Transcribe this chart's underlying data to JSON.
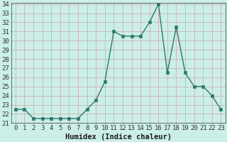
{
  "x": [
    0,
    1,
    2,
    3,
    4,
    5,
    6,
    7,
    8,
    9,
    10,
    11,
    12,
    13,
    14,
    15,
    16,
    17,
    18,
    19,
    20,
    21,
    22,
    23
  ],
  "y": [
    22.5,
    22.5,
    21.5,
    21.5,
    21.5,
    21.5,
    21.5,
    21.5,
    22.5,
    23.5,
    25.5,
    31.0,
    30.5,
    30.5,
    30.5,
    32.0,
    34.0,
    26.5,
    31.5,
    26.5,
    25.0,
    25.0,
    24.0,
    22.5
  ],
  "line_color": "#2d7a6a",
  "bg_color": "#cceee8",
  "grid_color": "#c8a8a8",
  "xlabel": "Humidex (Indice chaleur)",
  "ylim": [
    21,
    34
  ],
  "xlim": [
    -0.5,
    23.5
  ],
  "yticks": [
    21,
    22,
    23,
    24,
    25,
    26,
    27,
    28,
    29,
    30,
    31,
    32,
    33,
    34
  ],
  "xticks": [
    0,
    1,
    2,
    3,
    4,
    5,
    6,
    7,
    8,
    9,
    10,
    11,
    12,
    13,
    14,
    15,
    16,
    17,
    18,
    19,
    20,
    21,
    22,
    23
  ],
  "xtick_labels": [
    "0",
    "1",
    "2",
    "3",
    "4",
    "5",
    "6",
    "7",
    "8",
    "9",
    "10",
    "11",
    "12",
    "13",
    "14",
    "15",
    "16",
    "17",
    "18",
    "19",
    "20",
    "21",
    "22",
    "23"
  ],
  "marker_size": 2.5,
  "line_width": 1.0,
  "tick_font_size": 6.5,
  "xlabel_font_size": 7.5
}
